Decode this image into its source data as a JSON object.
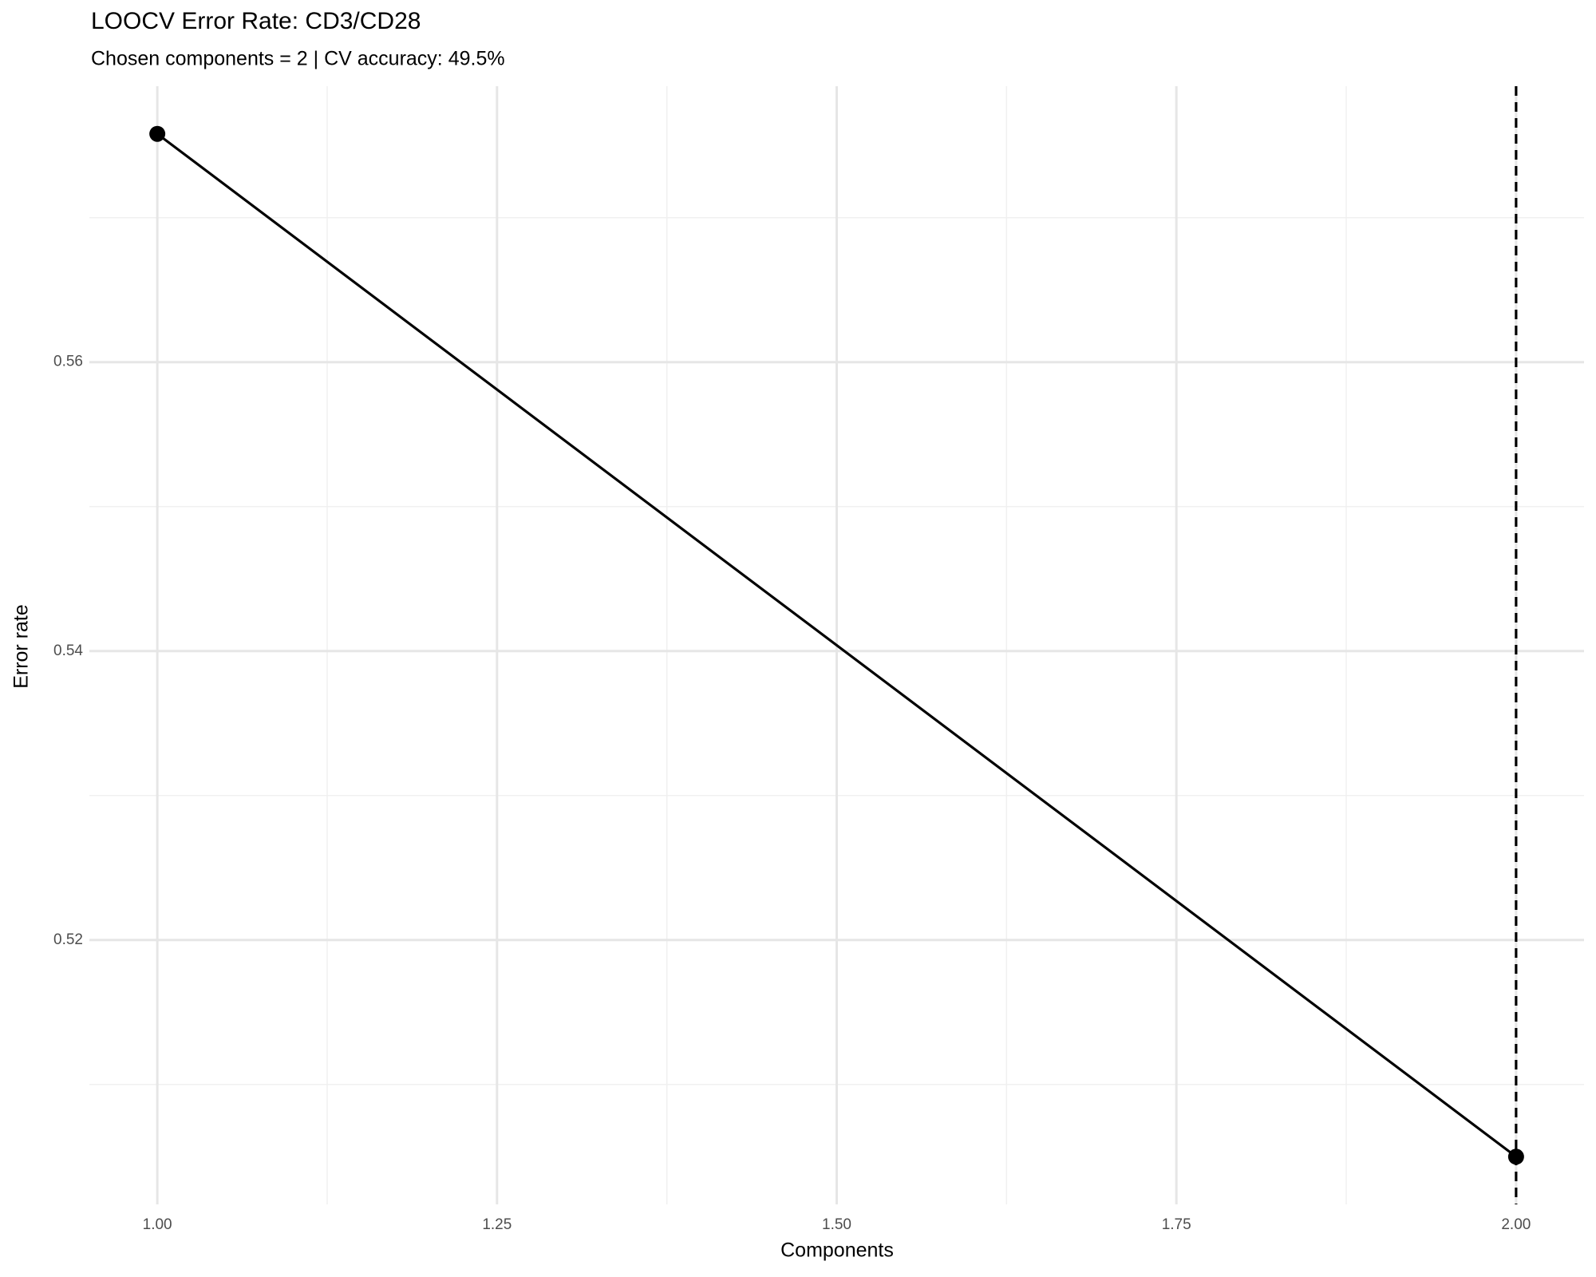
{
  "chart_data": {
    "type": "line",
    "title": "LOOCV Error Rate: CD3/CD28",
    "subtitle": "Chosen components = 2 | CV accuracy: 49.5%",
    "x_label": "Components",
    "y_label": "Error rate",
    "x": [
      1,
      2
    ],
    "series": [
      {
        "name": "Error rate",
        "color": "#000000",
        "values": [
          0.5758,
          0.505
        ]
      }
    ],
    "xlim": [
      0.95,
      2.05
    ],
    "xticks": [
      {
        "value": 1,
        "label": "1.00"
      },
      {
        "value": 1.25,
        "label": "1.25"
      },
      {
        "value": 1.5,
        "label": "1.50"
      },
      {
        "value": 1.75,
        "label": "1.75"
      },
      {
        "value": 2,
        "label": "2.00"
      }
    ],
    "xminor": [
      1.125,
      1.375,
      1.625,
      1.875
    ],
    "ylim": [
      0.5017,
      0.5791
    ],
    "yticks": [
      0.52,
      0.54,
      0.56
    ],
    "yminor": [
      0.51,
      0.53,
      0.55,
      0.57
    ],
    "vline": 2,
    "grid": true
  }
}
